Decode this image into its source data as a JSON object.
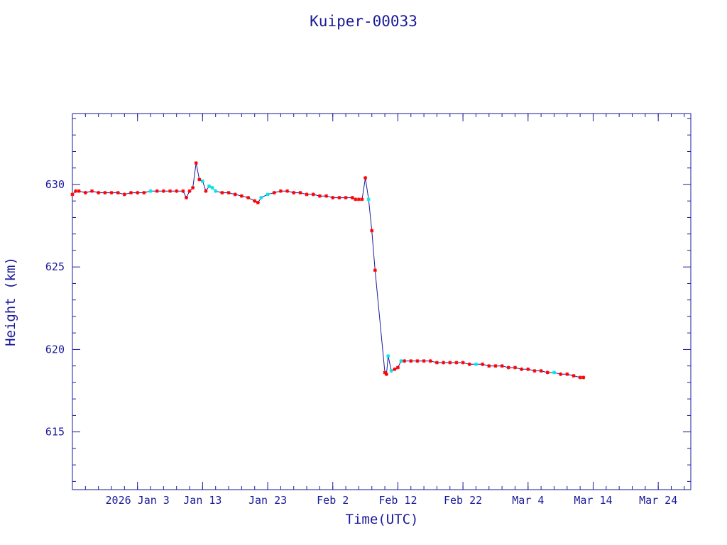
{
  "chart_data": {
    "type": "line",
    "title": "Kuiper-00033",
    "xlabel": "Time(UTC)",
    "ylabel": "Height (km)",
    "x_tick_labels": [
      "2026 Jan  3",
      "Jan 13",
      "Jan 23",
      "Feb  2",
      "Feb 12",
      "Feb 22",
      "Mar  4",
      "Mar 14",
      "Mar 24"
    ],
    "x_ticks": [
      "2026-01-03",
      "2026-01-13",
      "2026-01-23",
      "2026-02-02",
      "2026-02-12",
      "2026-02-22",
      "2026-03-04",
      "2026-03-14",
      "2026-03-24"
    ],
    "y_ticks": [
      615,
      620,
      625,
      630
    ],
    "xlim": [
      "2025-12-24",
      "2026-03-29"
    ],
    "ylim": [
      611.5,
      634.3
    ],
    "grid": false,
    "colors": {
      "axes": "#1a1a9a",
      "line": "#1a1a9a",
      "marker_primary": "#ff0000",
      "marker_secondary": "#00e5e5"
    },
    "series": [
      {
        "values": [
          [
            "2025-12-24T00:00",
            629.4,
            "red"
          ],
          [
            "2025-12-24T12:00",
            629.6,
            "red"
          ],
          [
            "2025-12-25T00:00",
            629.6,
            "red"
          ],
          [
            "2025-12-26T00:00",
            629.5,
            "red"
          ],
          [
            "2025-12-27T00:00",
            629.6,
            "red"
          ],
          [
            "2025-12-28T00:00",
            629.5,
            "red"
          ],
          [
            "2025-12-29T00:00",
            629.5,
            "red"
          ],
          [
            "2025-12-30T00:00",
            629.5,
            "red"
          ],
          [
            "2025-12-31T00:00",
            629.5,
            "red"
          ],
          [
            "2026-01-01T00:00",
            629.4,
            "red"
          ],
          [
            "2026-01-02T00:00",
            629.5,
            "red"
          ],
          [
            "2026-01-03T00:00",
            629.5,
            "red"
          ],
          [
            "2026-01-04T00:00",
            629.5,
            "red"
          ],
          [
            "2026-01-05T00:00",
            629.6,
            "cyan"
          ],
          [
            "2026-01-06T00:00",
            629.6,
            "red"
          ],
          [
            "2026-01-07T00:00",
            629.6,
            "red"
          ],
          [
            "2026-01-08T00:00",
            629.6,
            "red"
          ],
          [
            "2026-01-09T00:00",
            629.6,
            "red"
          ],
          [
            "2026-01-10T00:00",
            629.6,
            "red"
          ],
          [
            "2026-01-10T12:00",
            629.2,
            "red"
          ],
          [
            "2026-01-11T00:00",
            629.6,
            "red"
          ],
          [
            "2026-01-11T12:00",
            629.8,
            "red"
          ],
          [
            "2026-01-12T00:00",
            631.3,
            "red"
          ],
          [
            "2026-01-12T12:00",
            630.3,
            "red"
          ],
          [
            "2026-01-13T00:00",
            630.2,
            "cyan"
          ],
          [
            "2026-01-13T12:00",
            629.6,
            "red"
          ],
          [
            "2026-01-14T00:00",
            629.9,
            "cyan"
          ],
          [
            "2026-01-14T12:00",
            629.8,
            "cyan"
          ],
          [
            "2026-01-15T00:00",
            629.6,
            "cyan"
          ],
          [
            "2026-01-16T00:00",
            629.5,
            "red"
          ],
          [
            "2026-01-17T00:00",
            629.5,
            "red"
          ],
          [
            "2026-01-18T00:00",
            629.4,
            "red"
          ],
          [
            "2026-01-19T00:00",
            629.3,
            "red"
          ],
          [
            "2026-01-20T00:00",
            629.2,
            "red"
          ],
          [
            "2026-01-21T00:00",
            629.0,
            "red"
          ],
          [
            "2026-01-21T12:00",
            628.9,
            "red"
          ],
          [
            "2026-01-22T00:00",
            629.2,
            "cyan"
          ],
          [
            "2026-01-23T00:00",
            629.4,
            "cyan"
          ],
          [
            "2026-01-24T00:00",
            629.5,
            "red"
          ],
          [
            "2026-01-25T00:00",
            629.6,
            "red"
          ],
          [
            "2026-01-26T00:00",
            629.6,
            "red"
          ],
          [
            "2026-01-27T00:00",
            629.5,
            "red"
          ],
          [
            "2026-01-28T00:00",
            629.5,
            "red"
          ],
          [
            "2026-01-29T00:00",
            629.4,
            "red"
          ],
          [
            "2026-01-30T00:00",
            629.4,
            "red"
          ],
          [
            "2026-01-31T00:00",
            629.3,
            "red"
          ],
          [
            "2026-02-01T00:00",
            629.3,
            "red"
          ],
          [
            "2026-02-02T00:00",
            629.2,
            "red"
          ],
          [
            "2026-02-03T00:00",
            629.2,
            "red"
          ],
          [
            "2026-02-04T00:00",
            629.2,
            "red"
          ],
          [
            "2026-02-05T00:00",
            629.2,
            "red"
          ],
          [
            "2026-02-05T12:00",
            629.1,
            "red"
          ],
          [
            "2026-02-06T00:00",
            629.1,
            "red"
          ],
          [
            "2026-02-06T12:00",
            629.1,
            "red"
          ],
          [
            "2026-02-07T00:00",
            630.4,
            "red"
          ],
          [
            "2026-02-07T12:00",
            629.1,
            "cyan"
          ],
          [
            "2026-02-08T00:00",
            627.2,
            "red"
          ],
          [
            "2026-02-08T12:00",
            624.8,
            "red"
          ],
          [
            "2026-02-10T00:00",
            618.6,
            "red"
          ],
          [
            "2026-02-10T06:00",
            618.5,
            "red"
          ],
          [
            "2026-02-10T12:00",
            619.6,
            "cyan"
          ],
          [
            "2026-02-11T00:00",
            618.7,
            "cyan"
          ],
          [
            "2026-02-11T12:00",
            618.8,
            "red"
          ],
          [
            "2026-02-12T00:00",
            618.9,
            "red"
          ],
          [
            "2026-02-12T12:00",
            619.3,
            "cyan"
          ],
          [
            "2026-02-13T00:00",
            619.3,
            "red"
          ],
          [
            "2026-02-14T00:00",
            619.3,
            "red"
          ],
          [
            "2026-02-15T00:00",
            619.3,
            "red"
          ],
          [
            "2026-02-16T00:00",
            619.3,
            "red"
          ],
          [
            "2026-02-17T00:00",
            619.3,
            "red"
          ],
          [
            "2026-02-18T00:00",
            619.2,
            "red"
          ],
          [
            "2026-02-19T00:00",
            619.2,
            "red"
          ],
          [
            "2026-02-20T00:00",
            619.2,
            "red"
          ],
          [
            "2026-02-21T00:00",
            619.2,
            "red"
          ],
          [
            "2026-02-22T00:00",
            619.2,
            "red"
          ],
          [
            "2026-02-23T00:00",
            619.1,
            "red"
          ],
          [
            "2026-02-24T00:00",
            619.1,
            "cyan"
          ],
          [
            "2026-02-25T00:00",
            619.1,
            "red"
          ],
          [
            "2026-02-26T00:00",
            619.0,
            "red"
          ],
          [
            "2026-02-27T00:00",
            619.0,
            "red"
          ],
          [
            "2026-02-28T00:00",
            619.0,
            "red"
          ],
          [
            "2026-03-01T00:00",
            618.9,
            "red"
          ],
          [
            "2026-03-02T00:00",
            618.9,
            "red"
          ],
          [
            "2026-03-03T00:00",
            618.8,
            "red"
          ],
          [
            "2026-03-04T00:00",
            618.8,
            "red"
          ],
          [
            "2026-03-05T00:00",
            618.7,
            "red"
          ],
          [
            "2026-03-06T00:00",
            618.7,
            "red"
          ],
          [
            "2026-03-07T00:00",
            618.6,
            "red"
          ],
          [
            "2026-03-08T00:00",
            618.6,
            "cyan"
          ],
          [
            "2026-03-09T00:00",
            618.5,
            "red"
          ],
          [
            "2026-03-10T00:00",
            618.5,
            "red"
          ],
          [
            "2026-03-11T00:00",
            618.4,
            "red"
          ],
          [
            "2026-03-12T00:00",
            618.3,
            "red"
          ],
          [
            "2026-03-12T12:00",
            618.3,
            "red"
          ]
        ]
      }
    ]
  }
}
